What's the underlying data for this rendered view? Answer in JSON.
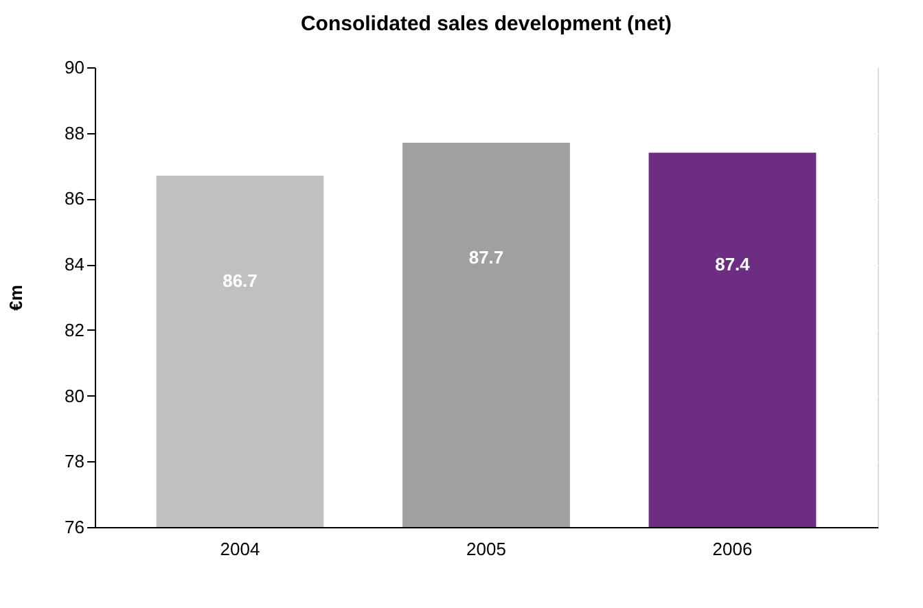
{
  "chart_data": {
    "type": "bar",
    "title": "Consolidated sales development (net)",
    "ylabel": "€m",
    "categories": [
      "2004",
      "2005",
      "2006"
    ],
    "values": [
      86.7,
      87.7,
      87.4
    ],
    "colors": [
      "#c0c0c0",
      "#a0a0a0",
      "#6c2d82"
    ],
    "ylim": [
      76,
      90
    ],
    "yticks": [
      76,
      78,
      80,
      82,
      84,
      86,
      88,
      90
    ],
    "grid": "y",
    "data_labels": true
  }
}
